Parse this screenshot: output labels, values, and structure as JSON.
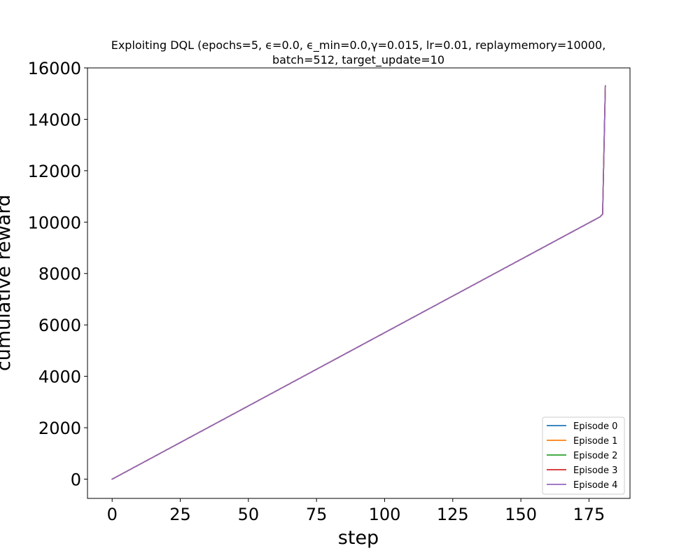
{
  "chart_data": {
    "type": "line",
    "title": "Exploiting DQL (epochs=5, ϵ=0.0, ϵ_min=0.0,γ=0.015, lr=0.01, replaymemory=10000, batch=512, target_update=10",
    "title_lines": [
      "Exploiting DQL (epochs=5, ϵ=0.0, ϵ_min=0.0,γ=0.015, lr=0.01, replaymemory=10000,",
      "batch=512, target_update=10"
    ],
    "xlabel": "step",
    "ylabel": "cumulative reward",
    "xlim": [
      -9.05,
      190.05
    ],
    "ylim": [
      -750,
      16000
    ],
    "xticks": [
      0,
      25,
      50,
      75,
      100,
      125,
      150,
      175
    ],
    "yticks": [
      0,
      2000,
      4000,
      6000,
      8000,
      10000,
      12000,
      14000,
      16000
    ],
    "grid": false,
    "legend_position": "lower right",
    "step_reward_pattern": [
      54,
      60
    ],
    "final_points": [
      {
        "x": 180,
        "y": 10310
      },
      {
        "x": 181,
        "y": 15300
      }
    ],
    "series": [
      {
        "name": "Episode 0",
        "color": "#1f77b4",
        "x_range": [
          0,
          181
        ],
        "final_value": 15300
      },
      {
        "name": "Episode 1",
        "color": "#ff7f0e",
        "x_range": [
          0,
          181
        ],
        "final_value": 15300
      },
      {
        "name": "Episode 2",
        "color": "#2ca02c",
        "x_range": [
          0,
          181
        ],
        "final_value": 15300
      },
      {
        "name": "Episode 3",
        "color": "#d62728",
        "x_range": [
          0,
          181
        ],
        "final_value": 15300
      },
      {
        "name": "Episode 4",
        "color": "#9467bd",
        "x_range": [
          0,
          181
        ],
        "final_value": 15300
      }
    ]
  }
}
